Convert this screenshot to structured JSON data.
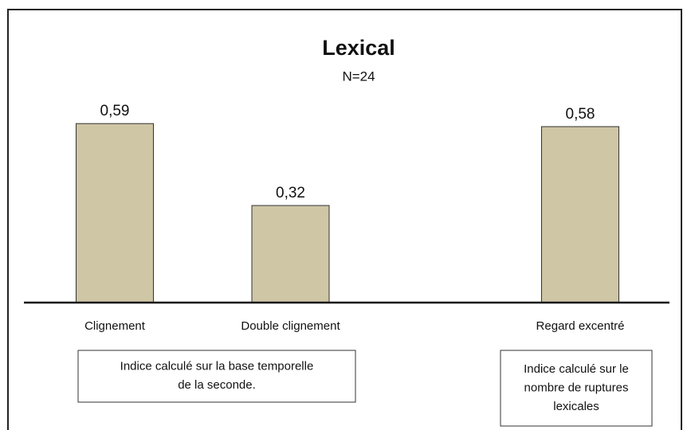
{
  "chart_data": {
    "type": "bar",
    "title": "Lexical",
    "subtitle": "N=24",
    "categories": [
      "Clignement",
      "Double clignement",
      "Regard excentré"
    ],
    "values": [
      0.59,
      0.32,
      0.58
    ],
    "value_labels": [
      "0,59",
      "0,32",
      "0,58"
    ],
    "color": "#cfc6a6",
    "annotations": [
      {
        "lines": [
          "Indice calculé sur la base temporelle",
          "de la seconde."
        ]
      },
      {
        "lines": [
          "Indice calculé sur le",
          "nombre de ruptures",
          "lexicales"
        ]
      }
    ]
  }
}
